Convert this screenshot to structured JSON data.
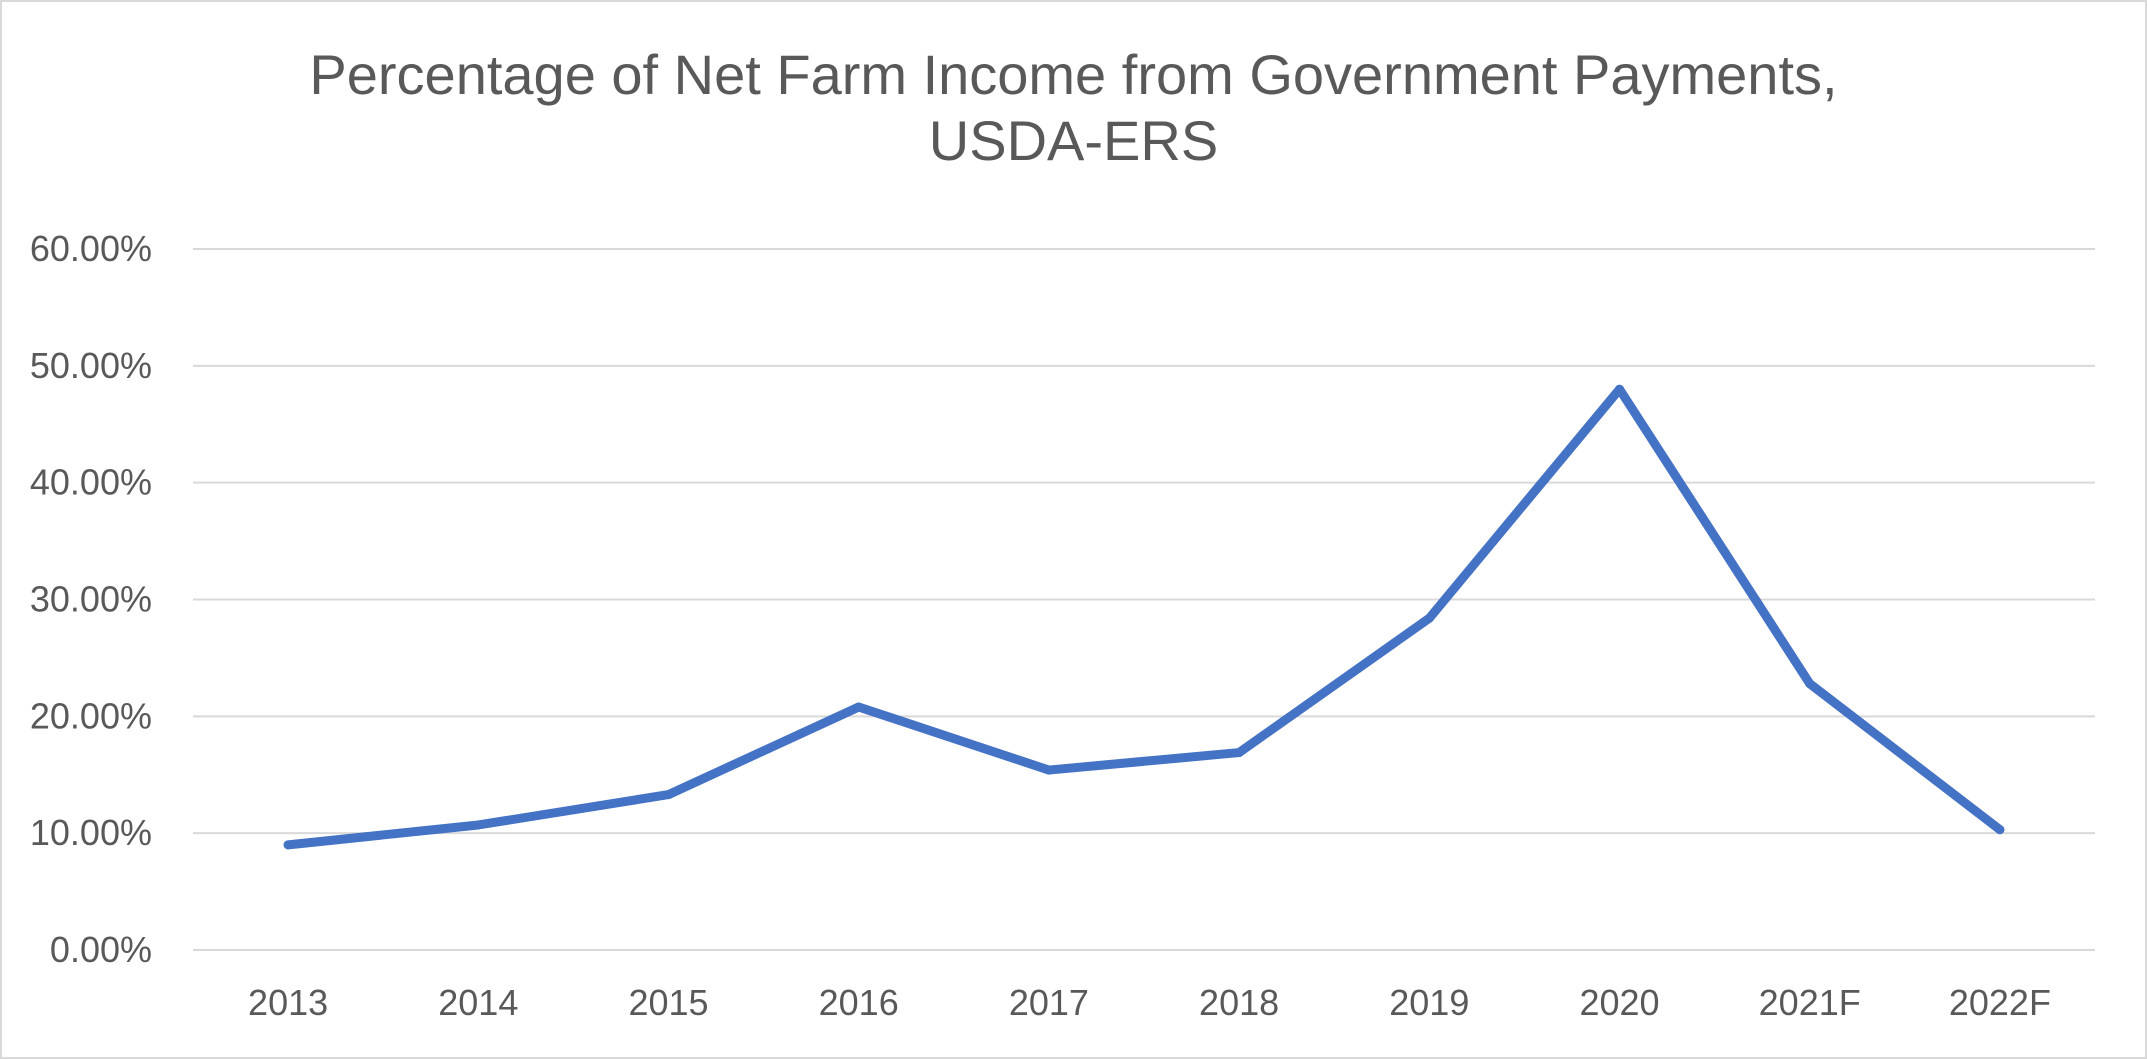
{
  "chart_data": {
    "type": "line",
    "title_lines": [
      "Percentage of Net Farm Income from Government Payments,",
      "USDA-ERS"
    ],
    "categories": [
      "2013",
      "2014",
      "2015",
      "2016",
      "2017",
      "2018",
      "2019",
      "2020",
      "2021F",
      "2022F"
    ],
    "series": [
      {
        "values": [
          9.0,
          10.7,
          13.3,
          20.8,
          15.4,
          16.9,
          28.4,
          48.0,
          22.8,
          10.3
        ]
      }
    ],
    "ylim": [
      0,
      60
    ],
    "y_ticks": [
      "0.00%",
      "10.00%",
      "20.00%",
      "30.00%",
      "40.00%",
      "50.00%",
      "60.00%"
    ],
    "y_tick_values": [
      0,
      10,
      20,
      30,
      40,
      50,
      60
    ],
    "grid": true,
    "legend": "none",
    "series_color": "#4472c4"
  }
}
